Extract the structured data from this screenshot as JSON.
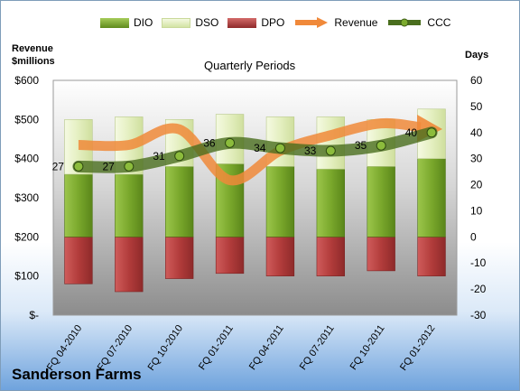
{
  "company_name": "Sanderson Farms",
  "legend": {
    "dio": "DIO",
    "dso": "DSO",
    "dpo": "DPO",
    "revenue": "Revenue",
    "ccc": "CCC"
  },
  "colors": {
    "dio": "#7cab2e",
    "dso": "#e6f0c3",
    "dpo": "#b8403f",
    "revenue": "#f0893a",
    "ccc": "#4a6e1e"
  },
  "chart_data": {
    "type": "bar",
    "title": "Quarterly Periods",
    "left_axis_label": "Revenue $millions",
    "right_axis_label": "Days",
    "left_ticks": [
      "$-",
      "$100",
      "$200",
      "$300",
      "$400",
      "$500",
      "$600"
    ],
    "right_ticks": [
      "-30",
      "-20",
      "-10",
      "0",
      "10",
      "20",
      "30",
      "40",
      "50",
      "60"
    ],
    "ylim_left": [
      0,
      600
    ],
    "ylim_right": [
      -30,
      60
    ],
    "categories": [
      "FQ 04-2010",
      "FQ 07-2010",
      "FQ 10-2010",
      "FQ 01-2011",
      "FQ 04-2011",
      "FQ 07-2011",
      "FQ 10-2011",
      "FQ 01-2012"
    ],
    "series": [
      {
        "name": "DIO",
        "axis": "right",
        "stack": true,
        "values": [
          24,
          24,
          27,
          28,
          27,
          26,
          27,
          30
        ]
      },
      {
        "name": "DSO",
        "axis": "right",
        "stack": true,
        "values": [
          21,
          22,
          18,
          19,
          19,
          20,
          18,
          19
        ]
      },
      {
        "name": "DPO",
        "axis": "right",
        "values": [
          -18,
          -21,
          -16,
          -14,
          -15,
          -15,
          -13,
          -15
        ]
      },
      {
        "name": "Revenue",
        "axis": "left",
        "values": [
          435,
          435,
          475,
          345,
          420,
          460,
          490,
          480
        ]
      },
      {
        "name": "CCC",
        "axis": "right",
        "values": [
          27,
          27,
          31,
          36,
          34,
          33,
          35,
          40
        ]
      }
    ],
    "ccc_labels": [
      "27",
      "27",
      "31",
      "36",
      "34",
      "33",
      "35",
      "40"
    ]
  }
}
